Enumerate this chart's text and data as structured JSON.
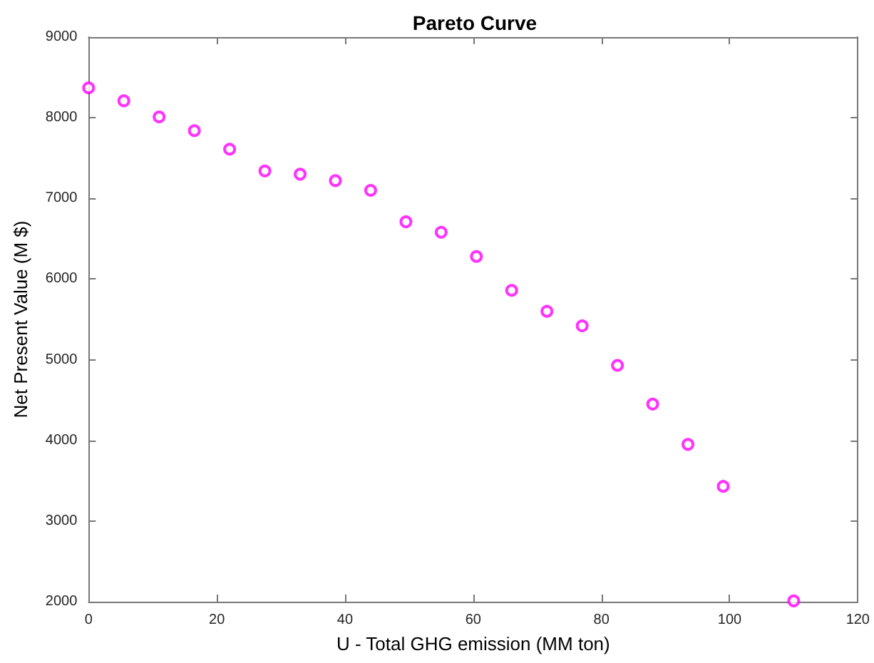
{
  "chart_data": {
    "type": "scatter",
    "title": "Pareto Curve",
    "xlabel": "U - Total GHG emission (MM ton)",
    "ylabel": "Net Present Value (M $)",
    "x": [
      0,
      5.5,
      11,
      16.5,
      22,
      27.5,
      33,
      38.5,
      44,
      49.5,
      55,
      60.5,
      66,
      71.5,
      77,
      82.5,
      88,
      93.5,
      99,
      110
    ],
    "series": [
      {
        "color": "#ff00ff",
        "values": [
          8370,
          8210,
          8010,
          7840,
          7610,
          7340,
          7300,
          7220,
          7100,
          6710,
          6580,
          6280,
          5860,
          5600,
          5420,
          4930,
          4450,
          3950,
          3430,
          2010
        ]
      }
    ],
    "xlim": [
      0,
      120
    ],
    "xticks": [
      0,
      20,
      40,
      60,
      80,
      100,
      120
    ],
    "ylim": [
      2000,
      9000
    ],
    "yticks": [
      2000,
      3000,
      4000,
      5000,
      6000,
      7000,
      8000,
      9000
    ],
    "grid": false,
    "marker": "circle"
  }
}
